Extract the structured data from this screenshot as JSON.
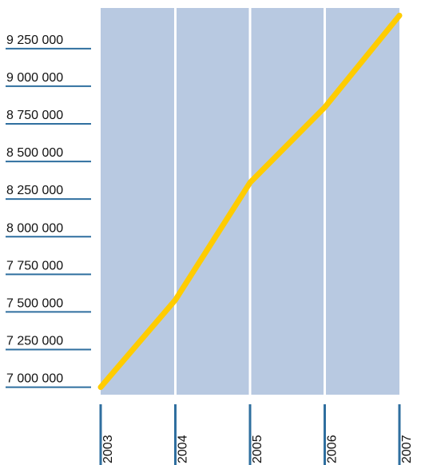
{
  "chart_data": {
    "type": "line",
    "title": "",
    "xlabel": "",
    "ylabel": "",
    "x": [
      "2003",
      "2004",
      "2005",
      "2006",
      "2007"
    ],
    "series": [
      {
        "values": [
          7000000,
          7580000,
          8360000,
          8860000,
          9470000
        ]
      }
    ],
    "y_ticks": [
      7000000,
      7250000,
      7500000,
      7750000,
      8000000,
      8250000,
      8500000,
      8750000,
      9000000,
      9250000
    ],
    "y_tick_labels": [
      "7 000 000",
      "7 250 000",
      "7 500 000",
      "7 750 000",
      "8 000 000",
      "8 250 000",
      "8 500 000",
      "8 750 000",
      "9 000 000",
      "9 250 000"
    ],
    "ylim": [
      6950000,
      9520000
    ],
    "grid": true,
    "colors": {
      "plot_background": "#b8c9e1",
      "line": "#ffcc00",
      "tick_rule": "#2f6f9f",
      "grid": "#ffffff"
    }
  }
}
